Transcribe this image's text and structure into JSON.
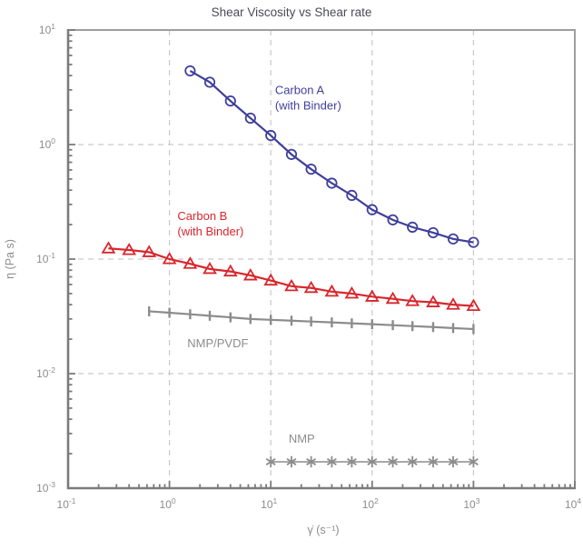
{
  "title": "Shear Viscosity vs Shear rate",
  "colors": {
    "carbon_a": "#3f3f9c",
    "carbon_b": "#d8262c",
    "solvent_gray": "#8c8c8c",
    "grid": "#c9c9c9",
    "spine": "#7b7b7b",
    "box": "#9e9e9e",
    "tick_label": "#8c8c8c",
    "title": "#4a4a57"
  },
  "chart_data": {
    "type": "line",
    "title": "Shear Viscosity vs Shear rate",
    "xlabel": "γ̇ (s⁻¹)",
    "ylabel": "η (Pa s)",
    "x_scale": "log",
    "y_scale": "log",
    "xlim": [
      0.1,
      10000
    ],
    "ylim": [
      0.001,
      10
    ],
    "tick_base": "10",
    "x_tick_exponents": [
      -1,
      0,
      1,
      2,
      3,
      4
    ],
    "y_tick_exponents": [
      1,
      0,
      -1,
      -2,
      -3
    ],
    "grid": "dashed at major decades",
    "legend_position": "inline annotations",
    "series": [
      {
        "id": "carbon-a",
        "name": "Carbon A (with Binder)",
        "marker": "circle",
        "color": "#3f3f9c",
        "x": [
          1.6,
          2.5,
          4,
          6.3,
          10,
          16,
          25,
          40,
          63,
          100,
          160,
          250,
          400,
          630,
          1000
        ],
        "y": [
          4.4,
          3.5,
          2.4,
          1.7,
          1.2,
          0.82,
          0.61,
          0.46,
          0.36,
          0.27,
          0.22,
          0.19,
          0.17,
          0.15,
          0.14
        ]
      },
      {
        "id": "carbon-b",
        "name": "Carbon B (with Binder)",
        "marker": "triangle",
        "color": "#d8262c",
        "x": [
          0.25,
          0.4,
          0.63,
          1,
          1.6,
          2.5,
          4,
          6.3,
          10,
          16,
          25,
          40,
          63,
          100,
          160,
          250,
          400,
          630,
          1000
        ],
        "y": [
          0.124,
          0.12,
          0.115,
          0.1,
          0.091,
          0.082,
          0.078,
          0.072,
          0.065,
          0.058,
          0.056,
          0.052,
          0.05,
          0.047,
          0.045,
          0.043,
          0.042,
          0.04,
          0.039
        ]
      },
      {
        "id": "nmp-pvdf",
        "name": "NMP/PVDF",
        "marker": "vbar",
        "color": "#8c8c8c",
        "x": [
          0.63,
          1,
          1.6,
          2.5,
          4,
          6.3,
          10,
          16,
          25,
          40,
          63,
          100,
          160,
          250,
          400,
          630,
          1000
        ],
        "y": [
          0.035,
          0.034,
          0.033,
          0.032,
          0.031,
          0.03,
          0.0295,
          0.029,
          0.0285,
          0.028,
          0.0275,
          0.027,
          0.0265,
          0.026,
          0.0255,
          0.025,
          0.0245
        ]
      },
      {
        "id": "nmp",
        "name": "NMP",
        "marker": "asterisk",
        "color": "#8c8c8c",
        "x": [
          10,
          16,
          25,
          40,
          63,
          100,
          160,
          250,
          400,
          630,
          1000
        ],
        "y": [
          0.0017,
          0.0017,
          0.0017,
          0.0017,
          0.0017,
          0.0017,
          0.0017,
          0.0017,
          0.0017,
          0.0017,
          0.0017
        ]
      }
    ],
    "annotations": [
      {
        "id": "carbon-a-label",
        "text_lines": [
          "Carbon A",
          "(with Binder)"
        ],
        "x": 11,
        "y": 2.75,
        "color": "#3f3f9c"
      },
      {
        "id": "carbon-b-label",
        "text_lines": [
          "Carbon B",
          "(with Binder)"
        ],
        "x": 1.2,
        "y": 0.22,
        "color": "#d8262c"
      },
      {
        "id": "nmp-pvdf-label",
        "text_lines": [
          "NMP/PVDF"
        ],
        "x": 1.5,
        "y": 0.017,
        "color": "#8c8c8c"
      },
      {
        "id": "nmp-label",
        "text_lines": [
          "NMP"
        ],
        "x": 15,
        "y": 0.0025,
        "color": "#8c8c8c"
      }
    ]
  }
}
